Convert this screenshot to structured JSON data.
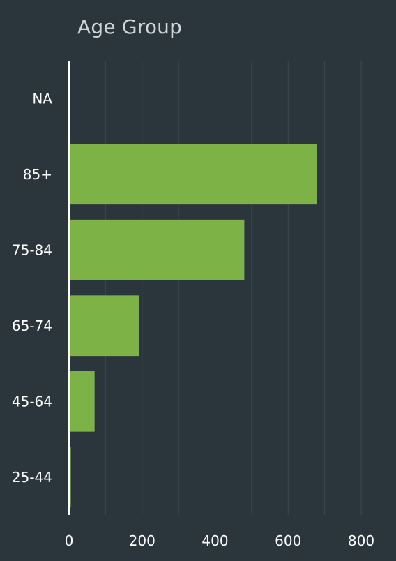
{
  "chart_data": {
    "type": "bar",
    "orientation": "horizontal",
    "title": "Age Group",
    "xlabel": "",
    "ylabel": "",
    "categories": [
      "NA",
      "85+",
      "75-84",
      "65-74",
      "45-64",
      "25-44"
    ],
    "values": [
      0,
      678,
      480,
      192,
      70,
      5
    ],
    "xlim": [
      0,
      850
    ],
    "xticks": [
      0,
      200,
      400,
      600,
      800
    ],
    "grid": "vertical",
    "colors": {
      "bar": "#7db346",
      "background": "#2b353c",
      "grid": "#3e484f",
      "axis": "#ffffff",
      "title": "#d0d6da",
      "text": "#ffffff"
    }
  }
}
